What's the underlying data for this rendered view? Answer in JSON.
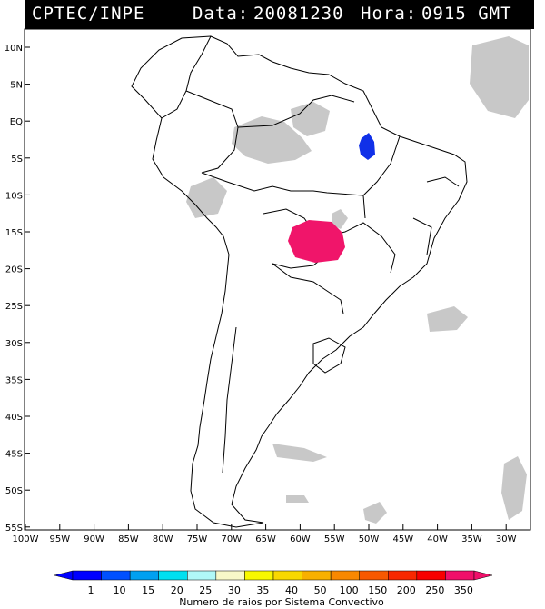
{
  "header": {
    "source": "CPTEC/INPE",
    "date_label": "Data:",
    "date": "20081230",
    "time_label": "Hora:",
    "time": "0915 GMT"
  },
  "map": {
    "lat_labels": [
      "10N",
      "5N",
      "EQ",
      "5S",
      "10S",
      "15S",
      "20S",
      "25S",
      "30S",
      "35S",
      "40S",
      "45S",
      "50S",
      "55S"
    ],
    "lon_labels": [
      "100W",
      "95W",
      "90W",
      "85W",
      "80W",
      "75W",
      "70W",
      "65W",
      "60W",
      "55W",
      "50W",
      "45W",
      "40W",
      "35W",
      "30W"
    ],
    "lightning_clusters": [
      {
        "color": "#1030e8",
        "label": "blue cluster"
      },
      {
        "color": "#f0156a",
        "label": "magenta cluster"
      }
    ],
    "cloud_color": "#c8c8c8"
  },
  "legend": {
    "values": [
      "1",
      "10",
      "15",
      "20",
      "25",
      "30",
      "35",
      "40",
      "50",
      "100",
      "150",
      "200",
      "250",
      "350"
    ],
    "colors": [
      "#0000ff",
      "#0050ff",
      "#00a0f0",
      "#00e0f0",
      "#b0f8f8",
      "#f8f8c8",
      "#f8f800",
      "#f8d800",
      "#f8b000",
      "#f88800",
      "#f85800",
      "#f82800",
      "#f80000",
      "#f0106a"
    ],
    "title": "Numero de raios por Sistema Convectivo"
  }
}
